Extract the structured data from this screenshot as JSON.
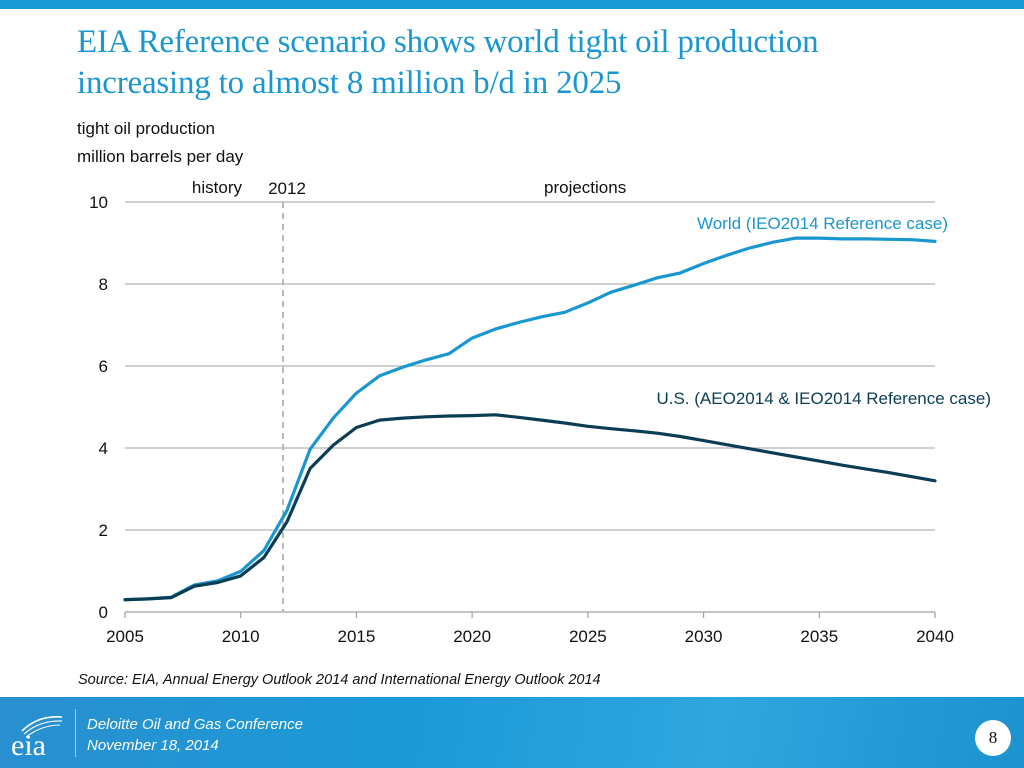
{
  "slide": {
    "title_line1": "EIA Reference scenario shows world tight oil production",
    "title_line2": "increasing to almost 8 million b/d in 2025",
    "unit_line1": "tight oil production",
    "unit_line2": "million barrels per day",
    "source": "Source:  EIA, Annual Energy Outlook 2014 and International Energy Outlook 2014",
    "accent_color": "#1a96d0"
  },
  "footer": {
    "logo_text": "eia",
    "line1": "Deloitte Oil and Gas Conference",
    "line2": "November 18, 2014",
    "page_number": "8"
  },
  "chart_data": {
    "type": "line",
    "title": "tight oil production, million barrels per day",
    "xlabel": "",
    "ylabel": "million barrels per day",
    "xlim": [
      2005,
      2040
    ],
    "ylim": [
      0,
      10
    ],
    "x_ticks": [
      2005,
      2010,
      2015,
      2020,
      2025,
      2030,
      2035,
      2040
    ],
    "y_ticks": [
      0,
      2,
      4,
      6,
      8,
      10
    ],
    "grid": "horizontal",
    "divider": {
      "x": 2012,
      "label": "2012",
      "left_label": "history",
      "right_label": "projections",
      "style": "dashed"
    },
    "x": [
      2005,
      2006,
      2007,
      2008,
      2009,
      2010,
      2011,
      2012,
      2013,
      2014,
      2015,
      2016,
      2017,
      2018,
      2019,
      2020,
      2021,
      2022,
      2023,
      2024,
      2025,
      2026,
      2027,
      2028,
      2029,
      2030,
      2031,
      2032,
      2033,
      2034,
      2035,
      2036,
      2037,
      2038,
      2039,
      2040
    ],
    "series": [
      {
        "name": "World (IEO2014 Reference case)",
        "color": "#1a96d0",
        "values": [
          0.3,
          0.32,
          0.36,
          0.66,
          0.76,
          0.99,
          1.5,
          2.48,
          3.97,
          4.73,
          5.34,
          5.76,
          5.97,
          6.15,
          6.3,
          6.68,
          6.9,
          7.06,
          7.2,
          7.31,
          7.54,
          7.8,
          7.97,
          8.15,
          8.27,
          8.5,
          8.7,
          8.88,
          9.02,
          9.12,
          9.12,
          9.1,
          9.1,
          9.09,
          9.08,
          9.04
        ]
      },
      {
        "name": "U.S. (AEO2014 & IEO2014 Reference case)",
        "color": "#0b3d55",
        "values": [
          0.3,
          0.32,
          0.35,
          0.63,
          0.72,
          0.88,
          1.33,
          2.2,
          3.5,
          4.07,
          4.5,
          4.68,
          4.73,
          4.76,
          4.78,
          4.79,
          4.81,
          4.75,
          4.68,
          4.61,
          4.53,
          4.47,
          4.42,
          4.36,
          4.28,
          4.18,
          4.08,
          3.98,
          3.88,
          3.78,
          3.68,
          3.58,
          3.49,
          3.4,
          3.3,
          3.2
        ]
      }
    ]
  }
}
